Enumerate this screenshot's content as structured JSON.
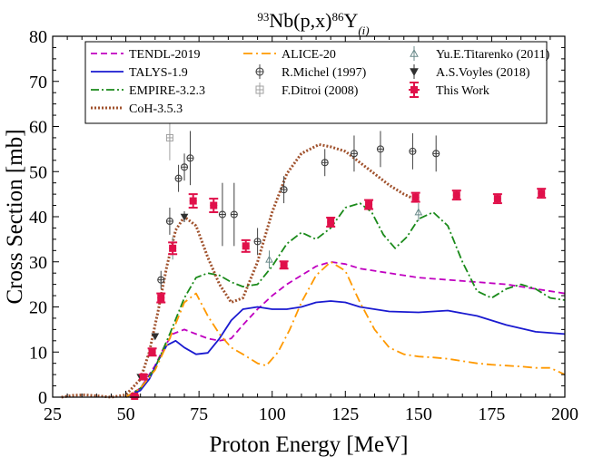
{
  "chart_data": {
    "type": "line",
    "title_parts": {
      "mass_a": "93",
      "target": "Nb(p,x)",
      "mass_b": "86",
      "product": "Y",
      "sub": "(i)"
    },
    "xlabel": "Proton Energy [MeV]",
    "ylabel": "Cross Section [mb]",
    "xlim": [
      25,
      200
    ],
    "ylim": [
      0,
      80
    ],
    "xticks": [
      25,
      50,
      75,
      100,
      125,
      150,
      175,
      200
    ],
    "yticks": [
      0,
      10,
      20,
      30,
      40,
      50,
      60,
      70,
      80
    ],
    "grid": false,
    "legend_position": "top",
    "series": [
      {
        "name": "TENDL-2019",
        "kind": "line",
        "color": "#c000c0",
        "dash": "7,4",
        "x": [
          50,
          55,
          60,
          63,
          66,
          70,
          74,
          78,
          82,
          86,
          90,
          95,
          100,
          105,
          110,
          115,
          120,
          125,
          130,
          140,
          150,
          160,
          170,
          180,
          190,
          200
        ],
        "y": [
          0,
          2,
          7,
          11,
          14,
          15,
          14,
          13,
          12.5,
          13,
          16,
          19.5,
          22.5,
          25,
          27,
          29,
          30,
          29.5,
          28.5,
          27.5,
          26.5,
          26,
          25.5,
          25,
          24,
          23
        ]
      },
      {
        "name": "TALYS-1.9",
        "kind": "line",
        "color": "#1a1ad0",
        "dash": "",
        "x": [
          50,
          55,
          58,
          61,
          64,
          67,
          70,
          74,
          78,
          82,
          86,
          90,
          95,
          100,
          105,
          110,
          115,
          120,
          125,
          130,
          140,
          150,
          160,
          170,
          180,
          190,
          200
        ],
        "y": [
          0,
          1.5,
          4,
          8,
          11.5,
          12.5,
          11,
          9.5,
          9.8,
          13,
          17,
          19.5,
          20,
          19.5,
          19.5,
          20,
          21,
          21.3,
          21,
          20,
          19,
          18.8,
          19.2,
          18,
          16,
          14.5,
          14
        ]
      },
      {
        "name": "EMPIRE-3.2.3",
        "kind": "line",
        "color": "#1a8a1a",
        "dash": "9,3,2,3",
        "x": [
          50,
          55,
          60,
          65,
          70,
          74,
          78,
          82,
          86,
          90,
          95,
          100,
          105,
          110,
          115,
          120,
          125,
          130,
          134,
          138,
          142,
          146,
          150,
          155,
          160,
          165,
          170,
          175,
          180,
          185,
          190,
          195,
          200
        ],
        "y": [
          0,
          2,
          6.5,
          14,
          22,
          26.5,
          27.5,
          27,
          25.5,
          24.5,
          25,
          29,
          34,
          36.5,
          35,
          37.5,
          42,
          43,
          41,
          36,
          33,
          35.5,
          39.5,
          41,
          38,
          30,
          23.5,
          22,
          24,
          25,
          24,
          22,
          21.5
        ]
      },
      {
        "name": "CoH-3.5.3",
        "kind": "line",
        "color": "#a0522d",
        "dash": "2,2",
        "width": 3,
        "x": [
          28,
          32,
          36,
          40,
          45,
          50,
          55,
          58,
          61,
          64,
          67,
          70,
          74,
          78,
          82,
          86,
          90,
          95,
          100,
          105,
          110,
          116,
          120,
          125,
          130,
          135,
          140,
          145,
          150
        ],
        "y": [
          0,
          0.4,
          0.5,
          0.3,
          0,
          0.5,
          4,
          10,
          19,
          29,
          37,
          40,
          38,
          31,
          25,
          21,
          22,
          30,
          41,
          49.5,
          54,
          56,
          55.5,
          54.5,
          52,
          49.5,
          47,
          45,
          43.5
        ]
      },
      {
        "name": "ALICE-20",
        "kind": "line",
        "color": "#ff9900",
        "dash": "10,4,2,4",
        "x": [
          50,
          55,
          60,
          65,
          70,
          74,
          78,
          82,
          86,
          90,
          95,
          98,
          102,
          106,
          110,
          115,
          120,
          125,
          130,
          135,
          140,
          145,
          150,
          155,
          160,
          165,
          170,
          175,
          180,
          185,
          190,
          195,
          200
        ],
        "y": [
          0,
          2,
          6,
          13,
          21,
          23,
          18,
          14,
          11,
          9.5,
          7.5,
          7,
          10,
          15,
          21,
          27,
          30,
          28,
          21,
          15,
          11,
          9.5,
          9,
          8.8,
          8.5,
          8,
          7.5,
          7.2,
          7,
          6.8,
          6.5,
          6.5,
          5
        ]
      },
      {
        "name": "R.Michel (1997)",
        "kind": "points",
        "color": "#404040",
        "marker": "circle-plus",
        "x": [
          62,
          65,
          68,
          70,
          72,
          83,
          87,
          95,
          104,
          118,
          128,
          137,
          148,
          156
        ],
        "y": [
          26,
          39,
          48.5,
          51,
          53,
          40.5,
          40.5,
          34.5,
          46,
          52,
          54,
          55,
          54.5,
          54
        ],
        "err": [
          2,
          3,
          3,
          3,
          6,
          7,
          7,
          3,
          3,
          3,
          4,
          4,
          4,
          4
        ]
      },
      {
        "name": "F.Ditroi (2008)",
        "kind": "points",
        "color": "#a0a0a0",
        "marker": "square-plus",
        "x": [
          65
        ],
        "y": [
          57.5
        ],
        "err": [
          5
        ]
      },
      {
        "name": "Yu.E.Titarenko (2011)",
        "kind": "points",
        "color": "#6a8a8a",
        "marker": "triangle-up",
        "x": [
          66,
          99,
          150
        ],
        "y": [
          33,
          30.5,
          41
        ],
        "err": [
          2.5,
          2,
          2
        ]
      },
      {
        "name": "A.S.Voyles (2018)",
        "kind": "points",
        "color": "#303030",
        "marker": "triangle-down",
        "x": [
          55,
          60,
          70
        ],
        "y": [
          4.5,
          13.5,
          40
        ],
        "err": [
          0.5,
          0.6,
          1.2
        ]
      },
      {
        "name": "This Work",
        "kind": "points",
        "color": "#e0104a",
        "marker": "square-err",
        "x": [
          53,
          56,
          59,
          62,
          66,
          73,
          80,
          91,
          104,
          120,
          133,
          149,
          163,
          177,
          192
        ],
        "y": [
          0.2,
          4.5,
          10,
          22,
          33,
          43.5,
          42.5,
          33.5,
          29.3,
          38.8,
          42.7,
          44.3,
          44.8,
          44,
          45.2
        ],
        "err": [
          0.2,
          0.5,
          0.8,
          1,
          1.3,
          1.5,
          1.5,
          1.3,
          0.8,
          1,
          1,
          1,
          1,
          1,
          1
        ]
      }
    ]
  }
}
